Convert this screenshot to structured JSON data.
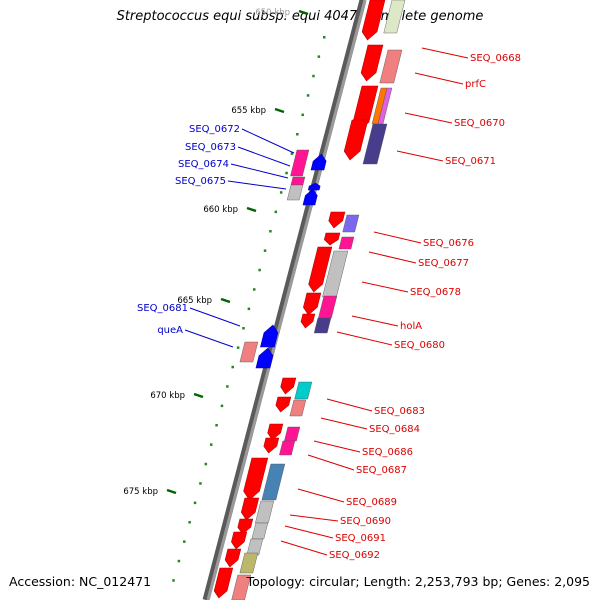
{
  "title": "Streptococcus equi subsp. equi 4047, complete genome",
  "accession": "Accession: NC_012471",
  "topology": "Topology: circular",
  "length": "Length: 2,253,793 bp",
  "genes": "Genes: 2,095",
  "separator": "; ",
  "scale": {
    "ticks": [
      {
        "label": "650 kbp"
      },
      {
        "label": "655 kbp"
      },
      {
        "label": "660 kbp"
      },
      {
        "label": "665 kbp"
      },
      {
        "label": "670 kbp"
      },
      {
        "label": "675 kbp"
      }
    ]
  },
  "colors": {
    "reverse_label": "#dd0000",
    "forward_label": "#0000cc",
    "arrow_red": "#ff0000",
    "arrow_blue": "#0000ff",
    "backbone": "#777777",
    "tick_green": "#006600"
  },
  "genes_list": {
    "reverse": [
      {
        "label": "SEQ_0668"
      },
      {
        "label": "prfC"
      },
      {
        "label": "SEQ_0670"
      },
      {
        "label": "SEQ_0671"
      },
      {
        "label": "SEQ_0676"
      },
      {
        "label": "SEQ_0677"
      },
      {
        "label": "SEQ_0678"
      },
      {
        "label": "holA"
      },
      {
        "label": "SEQ_0680"
      },
      {
        "label": "SEQ_0683"
      },
      {
        "label": "SEQ_0684"
      },
      {
        "label": "SEQ_0686"
      },
      {
        "label": "SEQ_0687"
      },
      {
        "label": "SEQ_0689"
      },
      {
        "label": "SEQ_0690"
      },
      {
        "label": "SEQ_0691"
      },
      {
        "label": "SEQ_0692"
      }
    ],
    "forward": [
      {
        "label": "SEQ_0672"
      },
      {
        "label": "SEQ_0673"
      },
      {
        "label": "SEQ_0674"
      },
      {
        "label": "SEQ_0675"
      },
      {
        "label": "SEQ_0681"
      },
      {
        "label": "queA"
      }
    ]
  }
}
